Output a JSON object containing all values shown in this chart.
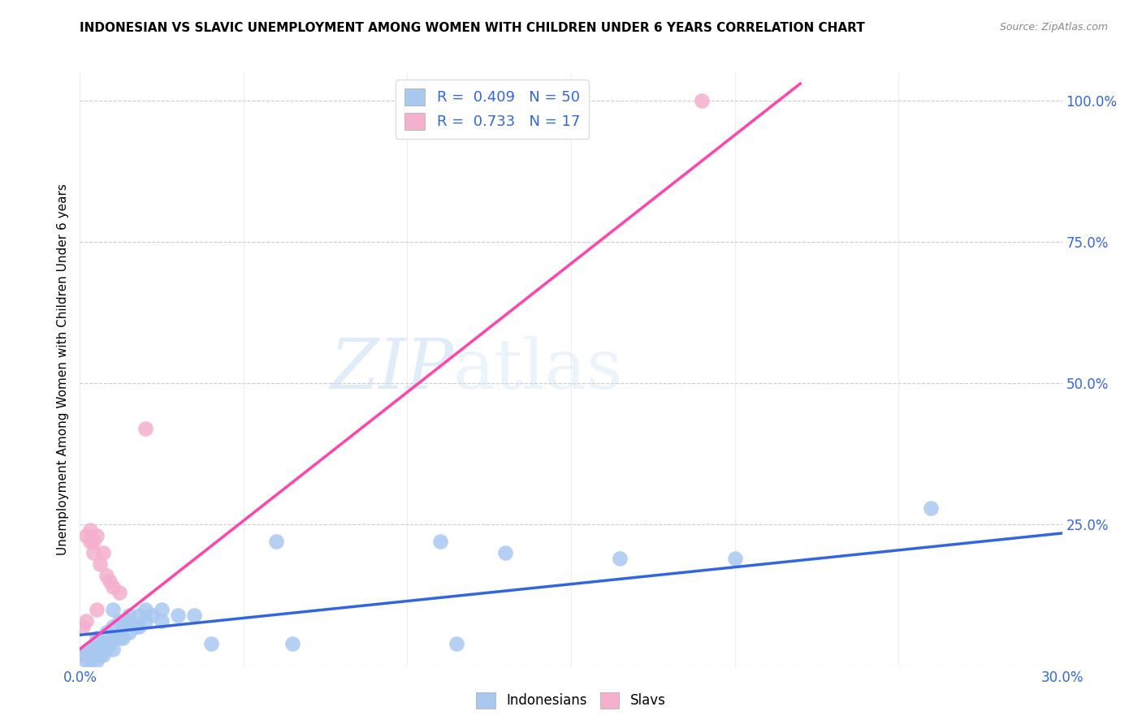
{
  "title": "INDONESIAN VS SLAVIC UNEMPLOYMENT AMONG WOMEN WITH CHILDREN UNDER 6 YEARS CORRELATION CHART",
  "source": "Source: ZipAtlas.com",
  "ylabel": "Unemployment Among Women with Children Under 6 years",
  "xlim": [
    0.0,
    0.3
  ],
  "ylim": [
    0.0,
    1.05
  ],
  "ytick_values": [
    0.0,
    0.25,
    0.5,
    0.75,
    1.0
  ],
  "ytick_labels": [
    "",
    "25.0%",
    "50.0%",
    "75.0%",
    "100.0%"
  ],
  "xtick_values": [
    0.0,
    0.05,
    0.1,
    0.15,
    0.2,
    0.25,
    0.3
  ],
  "xtick_labels": [
    "0.0%",
    "",
    "",
    "",
    "",
    "",
    "30.0%"
  ],
  "legend_R_ind": "0.409",
  "legend_N_ind": "50",
  "legend_R_slav": "0.733",
  "legend_N_slav": "17",
  "watermark_zip": "ZIP",
  "watermark_atlas": "atlas",
  "indonesian_color": "#a8c8f0",
  "slavic_color": "#f4b0cc",
  "indonesian_line_color": "#3366dd",
  "slavic_line_color": "#ff44aa",
  "label_color": "#3366dd",
  "grid_color": "#cccccc",
  "indonesian_points": [
    [
      0.001,
      0.02
    ],
    [
      0.002,
      0.01
    ],
    [
      0.002,
      0.02
    ],
    [
      0.003,
      0.01
    ],
    [
      0.003,
      0.02
    ],
    [
      0.003,
      0.03
    ],
    [
      0.004,
      0.02
    ],
    [
      0.004,
      0.03
    ],
    [
      0.005,
      0.01
    ],
    [
      0.005,
      0.02
    ],
    [
      0.005,
      0.03
    ],
    [
      0.005,
      0.04
    ],
    [
      0.005,
      0.05
    ],
    [
      0.006,
      0.02
    ],
    [
      0.006,
      0.03
    ],
    [
      0.007,
      0.02
    ],
    [
      0.007,
      0.04
    ],
    [
      0.008,
      0.03
    ],
    [
      0.008,
      0.06
    ],
    [
      0.009,
      0.04
    ],
    [
      0.01,
      0.03
    ],
    [
      0.01,
      0.05
    ],
    [
      0.01,
      0.07
    ],
    [
      0.01,
      0.1
    ],
    [
      0.012,
      0.05
    ],
    [
      0.012,
      0.08
    ],
    [
      0.013,
      0.05
    ],
    [
      0.013,
      0.07
    ],
    [
      0.015,
      0.06
    ],
    [
      0.015,
      0.08
    ],
    [
      0.015,
      0.09
    ],
    [
      0.017,
      0.07
    ],
    [
      0.018,
      0.07
    ],
    [
      0.018,
      0.09
    ],
    [
      0.02,
      0.08
    ],
    [
      0.02,
      0.1
    ],
    [
      0.022,
      0.09
    ],
    [
      0.025,
      0.08
    ],
    [
      0.025,
      0.1
    ],
    [
      0.03,
      0.09
    ],
    [
      0.035,
      0.09
    ],
    [
      0.04,
      0.04
    ],
    [
      0.06,
      0.22
    ],
    [
      0.065,
      0.04
    ],
    [
      0.11,
      0.22
    ],
    [
      0.115,
      0.04
    ],
    [
      0.13,
      0.2
    ],
    [
      0.165,
      0.19
    ],
    [
      0.2,
      0.19
    ],
    [
      0.26,
      0.28
    ]
  ],
  "slavic_points": [
    [
      0.001,
      0.07
    ],
    [
      0.002,
      0.08
    ],
    [
      0.002,
      0.23
    ],
    [
      0.003,
      0.22
    ],
    [
      0.003,
      0.24
    ],
    [
      0.004,
      0.2
    ],
    [
      0.004,
      0.22
    ],
    [
      0.005,
      0.1
    ],
    [
      0.005,
      0.23
    ],
    [
      0.006,
      0.18
    ],
    [
      0.007,
      0.2
    ],
    [
      0.008,
      0.16
    ],
    [
      0.009,
      0.15
    ],
    [
      0.01,
      0.14
    ],
    [
      0.012,
      0.13
    ],
    [
      0.02,
      0.42
    ],
    [
      0.19,
      1.0
    ]
  ],
  "ind_trend_x": [
    0.0,
    0.3
  ],
  "ind_trend_y": [
    0.055,
    0.235
  ],
  "slav_trend_x": [
    0.0,
    0.22
  ],
  "slav_trend_y": [
    0.03,
    1.03
  ]
}
